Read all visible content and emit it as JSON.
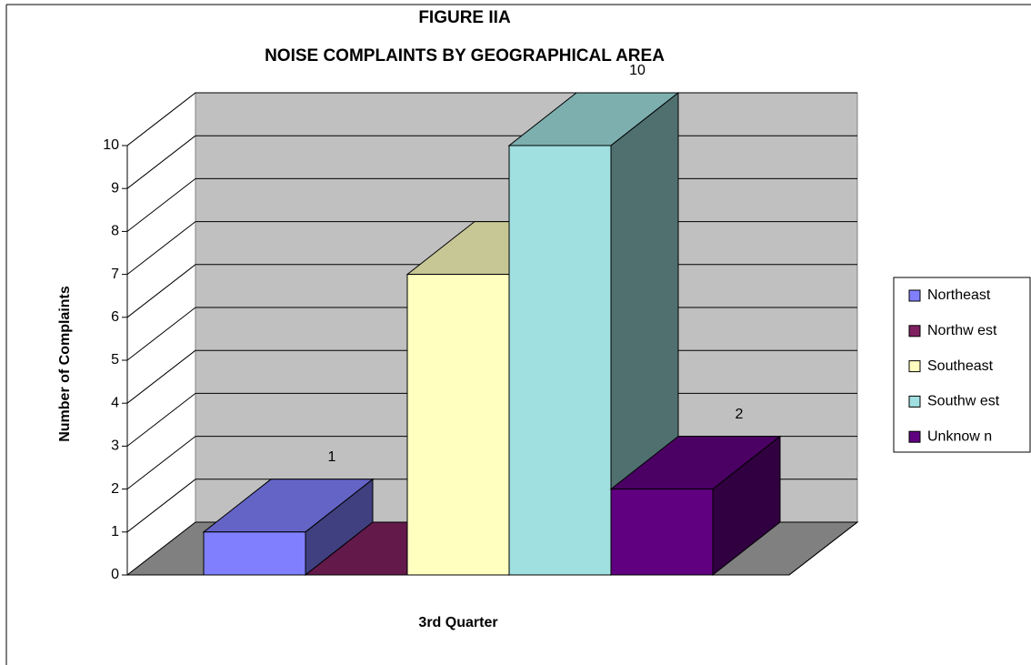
{
  "chart_data": {
    "type": "bar3d",
    "title": "FIGURE IIA",
    "subtitle": "NOISE COMPLAINTS BY GEOGRAPHICAL AREA",
    "ylabel": "Number of Complaints",
    "categories": [
      "3rd Quarter"
    ],
    "series": [
      {
        "name": "Northeast",
        "color": "#8080ff",
        "values": [
          1
        ]
      },
      {
        "name": "Northw est",
        "color": "#802060",
        "values": [
          0
        ]
      },
      {
        "name": "Southeast",
        "color": "#ffffc0",
        "values": [
          7
        ]
      },
      {
        "name": "Southw est",
        "color": "#a0e0e0",
        "values": [
          10
        ]
      },
      {
        "name": "Unknow n",
        "color": "#600080",
        "values": [
          2
        ]
      }
    ],
    "ylim": [
      0,
      10
    ],
    "yticks": [
      0,
      1,
      2,
      3,
      4,
      5,
      6,
      7,
      8,
      9,
      10
    ],
    "grid": true,
    "legend": "right"
  }
}
